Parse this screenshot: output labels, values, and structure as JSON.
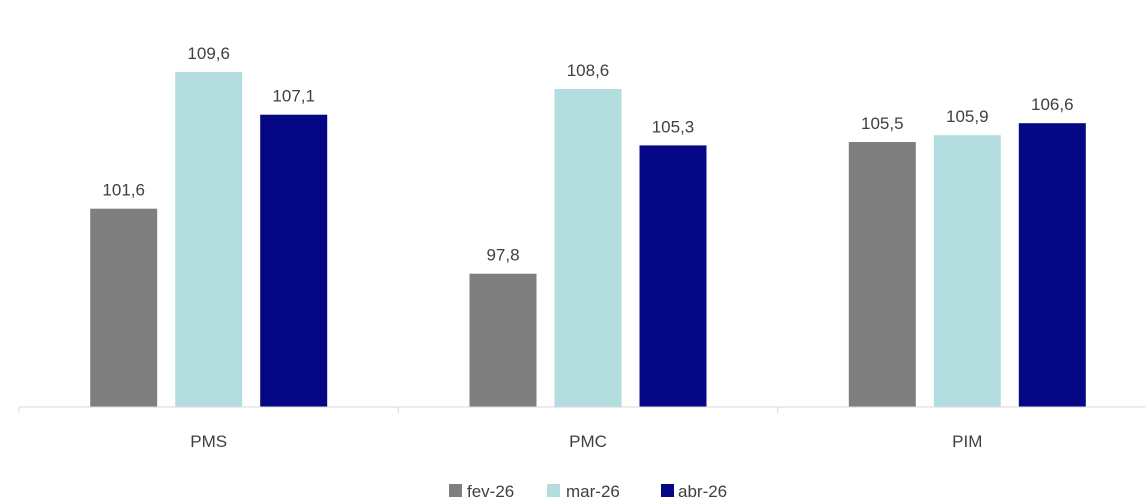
{
  "chart_data": {
    "type": "bar",
    "categories": [
      "PMS",
      "PMC",
      "PIM"
    ],
    "series": [
      {
        "name": "fev-26",
        "values": [
          101.6,
          97.8,
          105.5
        ],
        "color": "#7f7f7f",
        "labels": [
          "101,6",
          "97,8",
          "105,5"
        ]
      },
      {
        "name": "mar-26",
        "values": [
          109.6,
          108.6,
          105.9
        ],
        "color": "#b4dde0",
        "labels": [
          "109,6",
          "108,6",
          "105,9"
        ]
      },
      {
        "name": "abr-26",
        "values": [
          107.1,
          105.3,
          106.6
        ],
        "color": "#050785",
        "labels": [
          "107,1",
          "105,3",
          "106,6"
        ]
      }
    ],
    "ylim": [
      90,
      111
    ],
    "grid": false,
    "legend": "bottom-center",
    "axis_color": "#d9d9d9"
  }
}
